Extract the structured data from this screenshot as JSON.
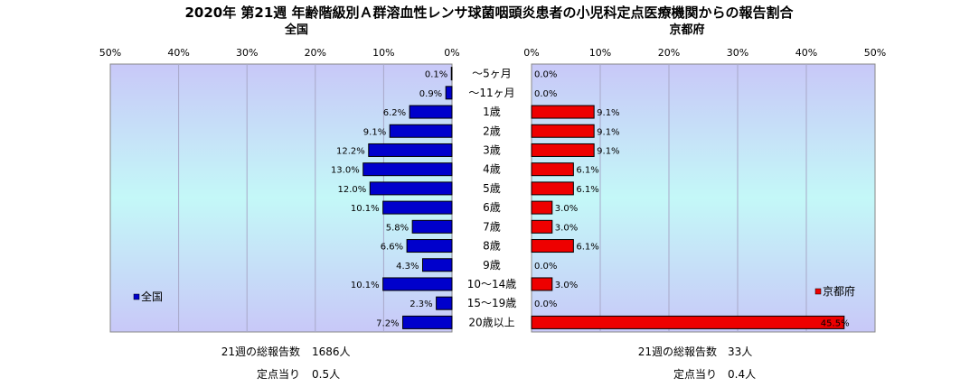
{
  "chart_data": {
    "type": "bar",
    "title": "2020年 第21週 年齢階級別Ａ群溶血性レンサ球菌咽頭炎患者の小児科定点医療機関からの報告割合",
    "categories": [
      "～5ヶ月",
      "～11ヶ月",
      "1歳",
      "2歳",
      "3歳",
      "4歳",
      "5歳",
      "6歳",
      "7歳",
      "8歳",
      "9歳",
      "10～14歳",
      "15～19歳",
      "20歳以上"
    ],
    "xlim": [
      0,
      50
    ],
    "tick_labels": [
      "0%",
      "10%",
      "20%",
      "30%",
      "40%",
      "50%"
    ],
    "grid": true,
    "series": [
      {
        "name": "全国",
        "subtitle": "全国",
        "color": "#0000cc",
        "values": [
          0.1,
          0.9,
          6.2,
          9.1,
          12.2,
          13.0,
          12.0,
          10.1,
          5.8,
          6.6,
          4.3,
          10.1,
          2.3,
          7.2
        ],
        "labels": [
          "0.1%",
          "0.9%",
          "6.2%",
          "9.1%",
          "12.2%",
          "13.0%",
          "12.0%",
          "10.1%",
          "5.8%",
          "6.6%",
          "4.3%",
          "10.1%",
          "2.3%",
          "7.2%"
        ],
        "legend": "全国",
        "legend_position": "bottom-left",
        "footer": {
          "total_label": "21週の総報告数",
          "total_value": "1686人",
          "per_label": "定点当り",
          "per_value": "0.5人"
        }
      },
      {
        "name": "京都府",
        "subtitle": "京都府",
        "color": "#ee0000",
        "values": [
          0.0,
          0.0,
          9.1,
          9.1,
          9.1,
          6.1,
          6.1,
          3.0,
          3.0,
          6.1,
          0.0,
          3.0,
          0.0,
          45.5
        ],
        "labels": [
          "0.0%",
          "0.0%",
          "9.1%",
          "9.1%",
          "9.1%",
          "6.1%",
          "6.1%",
          "3.0%",
          "3.0%",
          "6.1%",
          "0.0%",
          "3.0%",
          "0.0%",
          "45.5%"
        ],
        "legend": "京都府",
        "legend_position": "bottom-right",
        "footer": {
          "total_label": "21週の総報告数",
          "total_value": "33人",
          "per_label": "定点当り",
          "per_value": "0.4人"
        }
      }
    ]
  }
}
